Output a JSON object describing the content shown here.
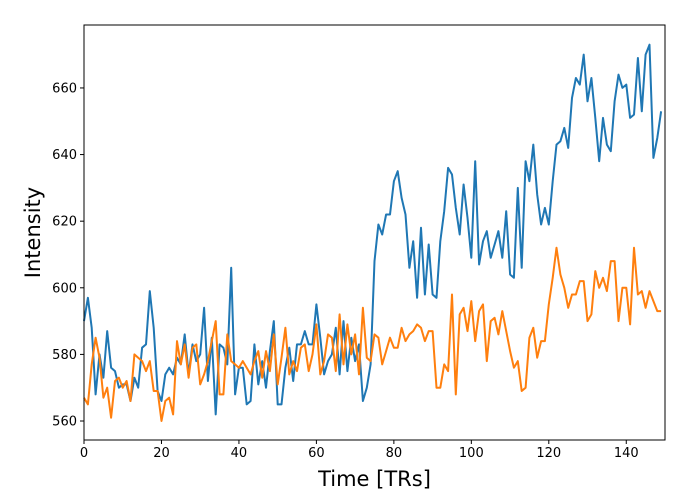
{
  "chart_data": {
    "type": "line",
    "title": "",
    "xlabel": "Time [TRs]",
    "ylabel": "Intensity",
    "xlim": [
      0,
      150
    ],
    "ylim": [
      554.3,
      678.9
    ],
    "xticks": [
      0,
      20,
      40,
      60,
      80,
      100,
      120,
      140
    ],
    "yticks": [
      560,
      580,
      600,
      620,
      640,
      660
    ],
    "grid": false,
    "legend": "none",
    "series": [
      {
        "color": "#1f77b4",
        "values": [
          590,
          597,
          588,
          568,
          580,
          573,
          587,
          576,
          575,
          570,
          571,
          571,
          566,
          573,
          570,
          582,
          583,
          599,
          588,
          569,
          566,
          574,
          576,
          574,
          579,
          577,
          586,
          574,
          583,
          578,
          580,
          594,
          572,
          585,
          562,
          583,
          582,
          577,
          606,
          568,
          576,
          576,
          565,
          566,
          583,
          571,
          578,
          570,
          581,
          590,
          565,
          565,
          576,
          582,
          572,
          583,
          583,
          587,
          583,
          583,
          595,
          585,
          574,
          578,
          580,
          588,
          574,
          590,
          575,
          585,
          578,
          583,
          566,
          570,
          577,
          608,
          619,
          616,
          622,
          622,
          632,
          635,
          627,
          622,
          606,
          614,
          597,
          618,
          598,
          613,
          598,
          597,
          614,
          623,
          636,
          634,
          624,
          616,
          631,
          621,
          609,
          638,
          607,
          614,
          617,
          609,
          613,
          617,
          609,
          623,
          604,
          603,
          630,
          606,
          638,
          632,
          643,
          628,
          619,
          624,
          619,
          632,
          643,
          644,
          648,
          642,
          657,
          663,
          661,
          670,
          656,
          663,
          651,
          638,
          651,
          643,
          641,
          656,
          664,
          660,
          661,
          651,
          652,
          669,
          653,
          670,
          673,
          639,
          645,
          653
        ]
      },
      {
        "color": "#ff7f0e",
        "values": [
          567,
          565,
          577,
          585,
          579,
          567,
          570,
          561,
          572,
          573,
          570,
          572,
          566,
          580,
          579,
          578,
          575,
          578,
          569,
          569,
          560,
          566,
          567,
          562,
          584,
          577,
          583,
          573,
          582,
          583,
          571,
          574,
          578,
          584,
          590,
          568,
          568,
          586,
          578,
          577,
          576,
          578,
          576,
          574,
          578,
          581,
          573,
          581,
          575,
          586,
          571,
          579,
          588,
          574,
          578,
          575,
          582,
          583,
          575,
          580,
          589,
          574,
          578,
          586,
          585,
          575,
          592,
          577,
          589,
          580,
          586,
          574,
          594,
          579,
          578,
          586,
          585,
          577,
          581,
          585,
          582,
          582,
          588,
          584,
          586,
          587,
          589,
          588,
          584,
          587,
          587,
          570,
          570,
          577,
          575,
          598,
          568,
          592,
          594,
          587,
          596,
          584,
          593,
          595,
          578,
          590,
          591,
          586,
          593,
          587,
          581,
          576,
          578,
          569,
          570,
          585,
          588,
          579,
          584,
          584,
          595,
          603,
          612,
          604,
          600,
          594,
          598,
          598,
          602,
          602,
          590,
          592,
          605,
          600,
          603,
          599,
          608,
          608,
          590,
          600,
          600,
          589,
          612,
          598,
          599,
          594,
          599,
          596,
          593,
          593
        ]
      }
    ]
  }
}
